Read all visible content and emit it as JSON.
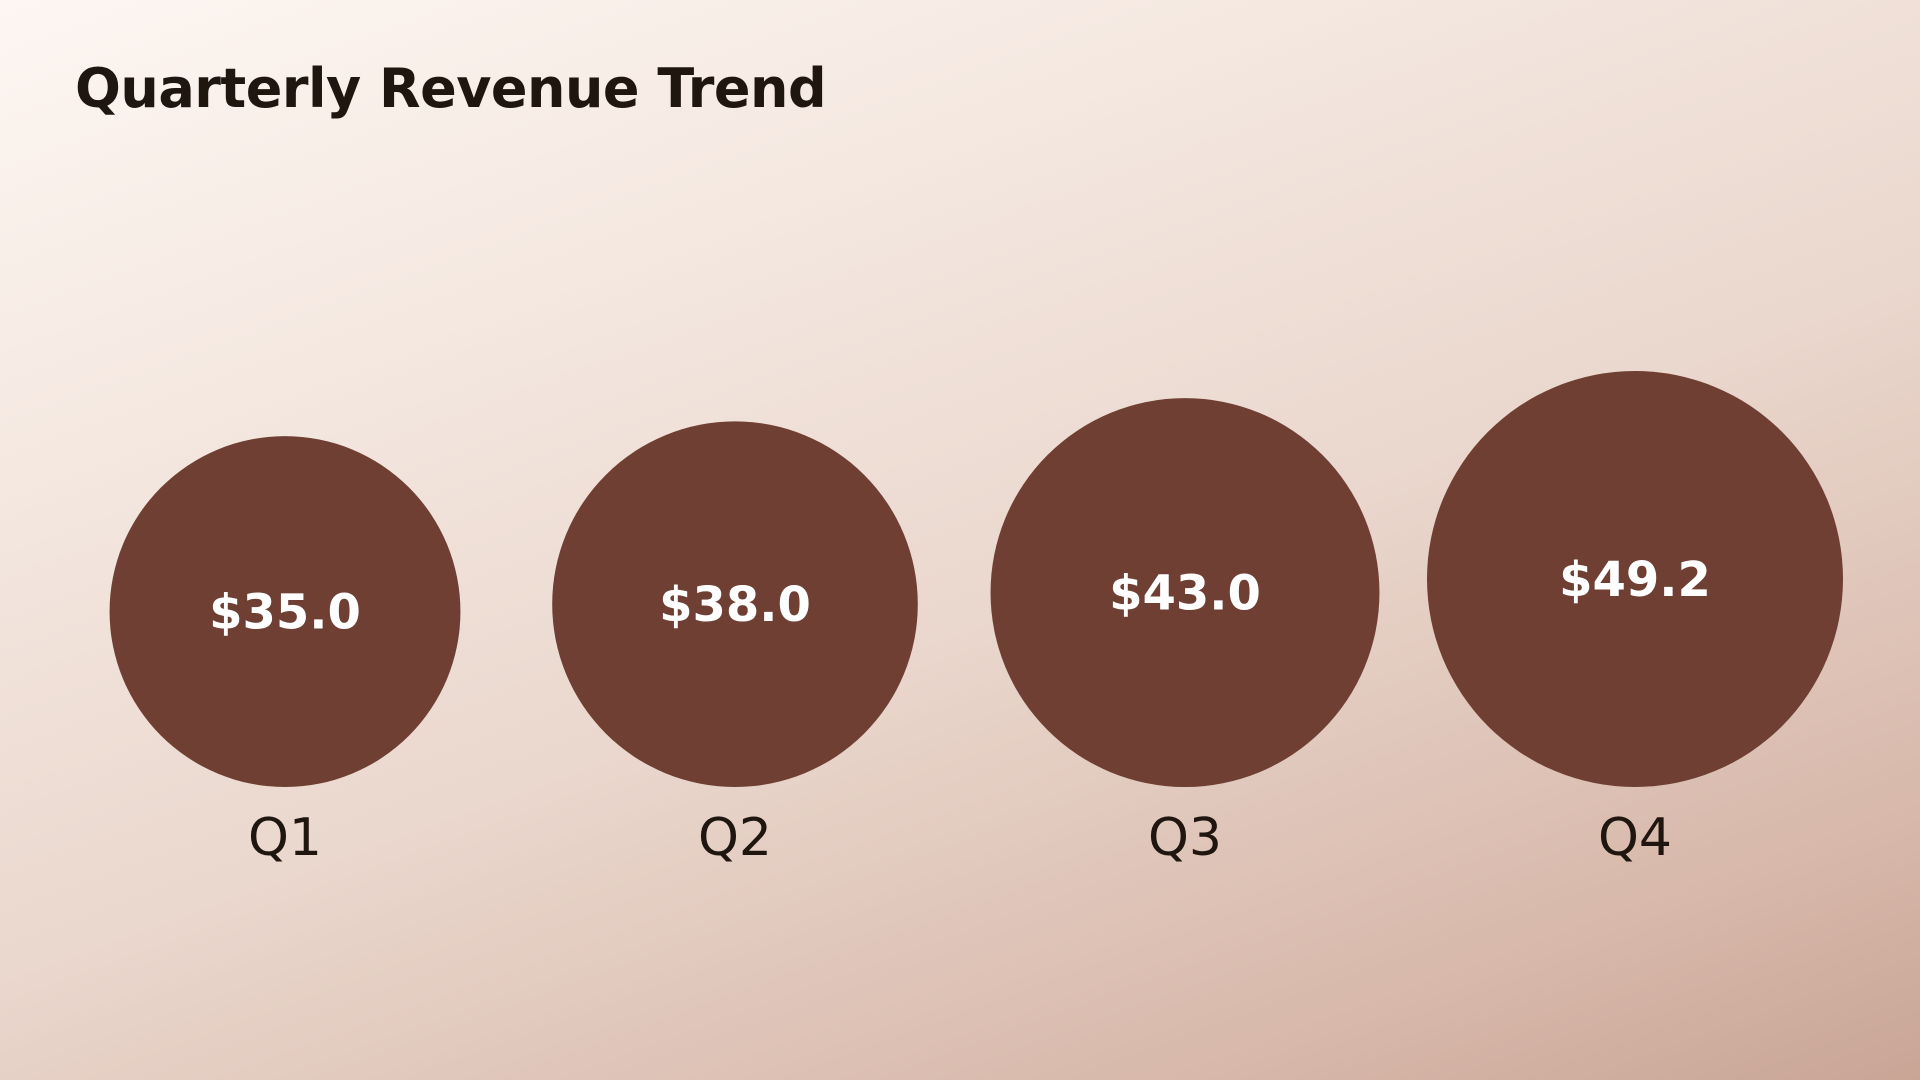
{
  "chart_data": {
    "type": "bubble",
    "title": "Quarterly Revenue Trend",
    "categories": [
      "Q1",
      "Q2",
      "Q3",
      "Q4"
    ],
    "values": [
      35.0,
      38.0,
      43.0,
      49.2
    ],
    "value_labels": [
      "$35.0",
      "$38.0",
      "$43.0",
      "$49.2"
    ],
    "bubble_color": "#6e3f32",
    "label_color": "#ffffff",
    "text_color": "#1f160f",
    "legend": "none",
    "grid": false
  }
}
